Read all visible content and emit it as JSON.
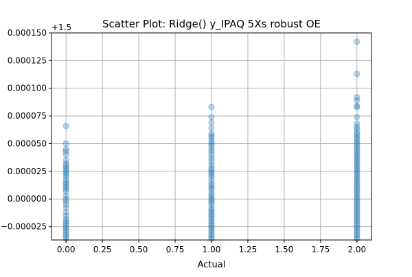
{
  "chart_data": {
    "type": "scatter",
    "title": "Scatter Plot: Ridge() y_IPAQ 5Xs robust OE",
    "xlabel": "Actual",
    "ylabel": "",
    "y_offset_label": "+1.5",
    "y_offset": 1.5,
    "xlim": [
      -0.1,
      2.1
    ],
    "ylim": [
      -3.7e-05,
      0.00015
    ],
    "x_ticks": [
      0.0,
      0.25,
      0.5,
      0.75,
      1.0,
      1.25,
      1.5,
      1.75,
      2.0
    ],
    "x_tick_labels": [
      "0.00",
      "0.25",
      "0.50",
      "0.75",
      "1.00",
      "1.25",
      "1.50",
      "1.75",
      "2.00"
    ],
    "y_ticks": [
      -2.5e-05,
      0.0,
      2.5e-05,
      5e-05,
      7.5e-05,
      0.0001,
      0.000125,
      0.00015
    ],
    "y_tick_labels": [
      "−0.000025",
      "0.000000",
      "0.000025",
      "0.000050",
      "0.000075",
      "0.000100",
      "0.000125",
      "0.000150"
    ],
    "grid": true,
    "marker_color": "#1f77b4",
    "marker_alpha": 0.3,
    "series": [
      {
        "x": 0,
        "y": [
          6.6e-05,
          5e-05,
          4.5e-05,
          4.3e-05,
          4e-05,
          3.5e-05,
          3.2e-05,
          3e-05,
          2.8e-05,
          2.6e-05,
          2.4e-05,
          2.2e-05,
          2e-05,
          1.7e-05,
          1.5e-05,
          1.3e-05,
          1.1e-05,
          9e-06,
          7e-06,
          3e-06,
          0.0,
          -2e-06,
          -5e-06,
          -8e-06,
          -1.2e-05,
          -1.5e-05,
          -1.8e-05,
          -2e-05,
          -2.2e-05,
          -2.4e-05,
          -2.6e-05,
          -2.8e-05,
          -3e-05,
          -3.2e-05,
          -3.4e-05,
          -3.6e-05
        ]
      },
      {
        "x": 1,
        "y": [
          8.3e-05,
          7.4e-05,
          6.9e-05,
          6.4e-05,
          5.9e-05,
          5.7e-05,
          5.5e-05,
          5.2e-05,
          5e-05,
          4.8e-05,
          4.5e-05,
          4.3e-05,
          4e-05,
          3.7e-05,
          3.4e-05,
          3.1e-05,
          2.8e-05,
          2.6e-05,
          2.4e-05,
          2.2e-05,
          2e-05,
          1.7e-05,
          1.4e-05,
          1.2e-05,
          1e-05,
          8e-06,
          5e-06,
          3e-06,
          1e-06,
          -1e-06,
          -3e-06,
          -5e-06,
          -8e-06,
          -1e-05,
          -1.2e-05,
          -1.4e-05,
          -1.6e-05,
          -1.8e-05,
          -2e-05,
          -2.2e-05,
          -2.4e-05,
          -2.6e-05,
          -2.8e-05,
          -3e-05,
          -3.2e-05,
          -3.4e-05,
          -3.6e-05
        ]
      },
      {
        "x": 2,
        "y": [
          0.000142,
          0.000113,
          9.2e-05,
          8.9e-05,
          8.4e-05,
          8.3e-05,
          7.4e-05,
          6.8e-05,
          6.5e-05,
          6.3e-05,
          6e-05,
          5.8e-05,
          5.6e-05,
          5.4e-05,
          5.2e-05,
          5e-05,
          4.8e-05,
          4.6e-05,
          4.4e-05,
          4.2e-05,
          4e-05,
          3.8e-05,
          3.6e-05,
          3.4e-05,
          3.2e-05,
          3e-05,
          2.8e-05,
          2.6e-05,
          2.4e-05,
          2.2e-05,
          2e-05,
          1.8e-05,
          1.6e-05,
          1.4e-05,
          1.2e-05,
          1e-05,
          8e-06,
          6e-06,
          4e-06,
          2e-06,
          0.0,
          -2e-06,
          -4e-06,
          -6e-06,
          -8e-06,
          -1e-05,
          -1.2e-05,
          -1.4e-05,
          -1.6e-05,
          -1.8e-05,
          -2e-05,
          -2.2e-05,
          -2.4e-05,
          -2.6e-05,
          -2.8e-05,
          -3e-05,
          -3.2e-05,
          -3.4e-05,
          -3.6e-05
        ]
      }
    ]
  }
}
